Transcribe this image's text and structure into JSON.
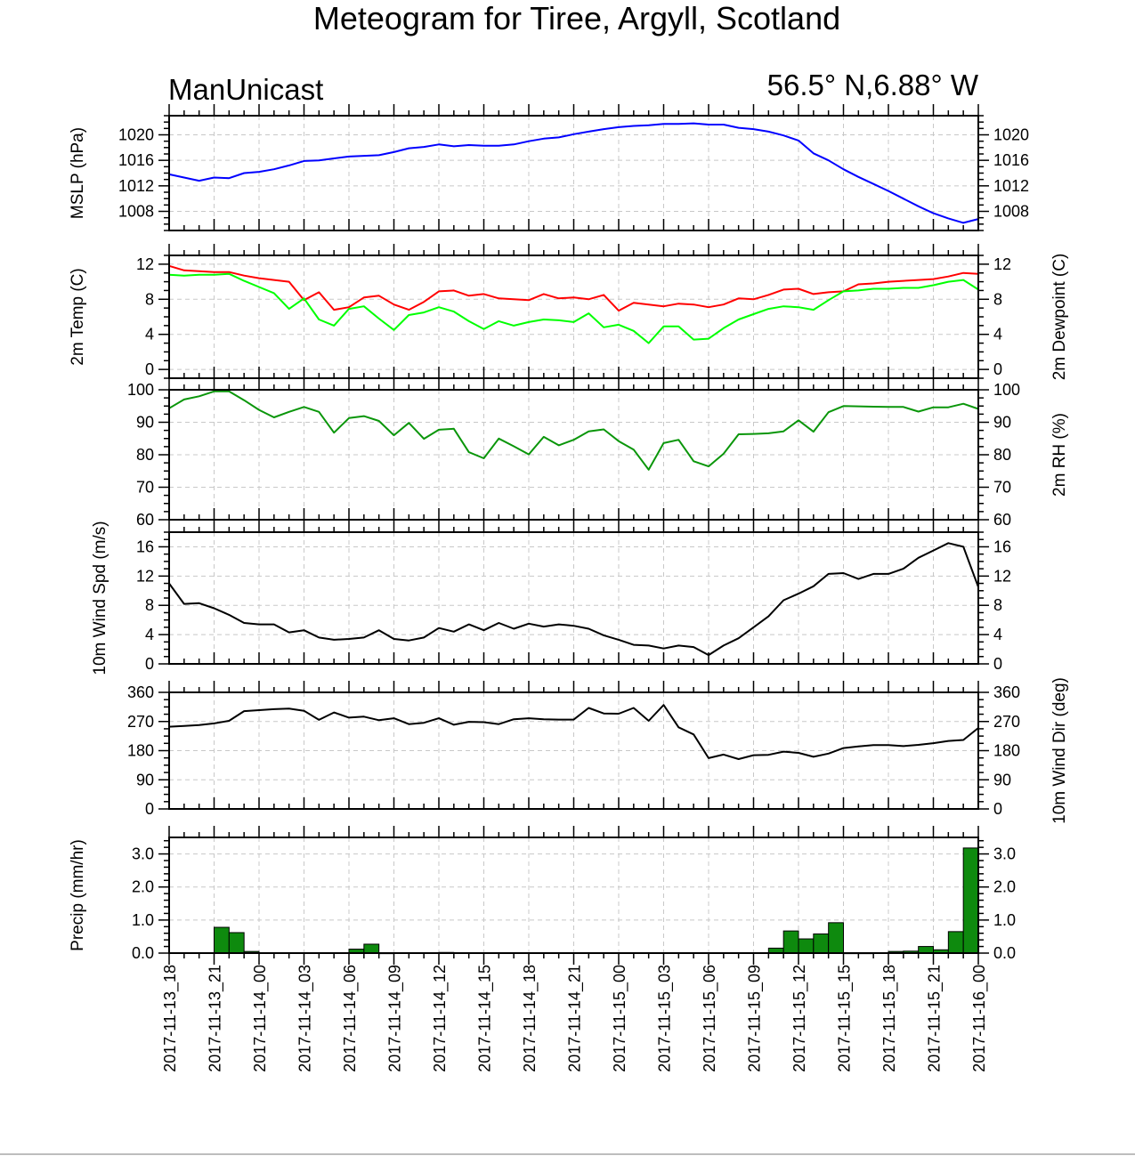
{
  "chart_data": {
    "type": "line",
    "title": "Meteogram for Tiree, Argyll, Scotland",
    "subtitle_left": "ManUnicast",
    "subtitle_right": "56.5° N,6.88° W",
    "x_labels": [
      "2017-11-13_18",
      "2017-11-13_21",
      "2017-11-14_00",
      "2017-11-14_03",
      "2017-11-14_06",
      "2017-11-14_09",
      "2017-11-14_12",
      "2017-11-14_15",
      "2017-11-14_18",
      "2017-11-14_21",
      "2017-11-15_00",
      "2017-11-15_03",
      "2017-11-15_06",
      "2017-11-15_09",
      "2017-11-15_12",
      "2017-11-15_15",
      "2017-11-15_18",
      "2017-11-15_21",
      "2017-11-16_00"
    ],
    "x_hours": [
      0,
      1,
      2,
      3,
      4,
      5,
      6,
      7,
      8,
      9,
      10,
      11,
      12,
      13,
      14,
      15,
      16,
      17,
      18,
      19,
      20,
      21,
      22,
      23,
      24,
      25,
      26,
      27,
      28,
      29,
      30,
      31,
      32,
      33,
      34,
      35,
      36,
      37,
      38,
      39,
      40,
      41,
      42,
      43,
      44,
      45,
      46,
      47,
      48,
      49,
      50,
      51,
      52,
      53,
      54
    ],
    "xlim": [
      0,
      54
    ],
    "panels": [
      {
        "ylabel": "MSLP (hPa)",
        "ylabel_right": "",
        "ylim": [
          1005,
          1023
        ],
        "ticks": [
          1008,
          1012,
          1016,
          1020
        ],
        "series": [
          {
            "color": "#0000ff",
            "values": [
              1013.8,
              1013.3,
              1012.8,
              1013.3,
              1013.2,
              1014.0,
              1014.2,
              1014.6,
              1015.2,
              1015.9,
              1016.0,
              1016.3,
              1016.6,
              1016.7,
              1016.8,
              1017.3,
              1017.9,
              1018.1,
              1018.5,
              1018.2,
              1018.4,
              1018.3,
              1018.3,
              1018.5,
              1019.0,
              1019.4,
              1019.6,
              1020.1,
              1020.5,
              1020.9,
              1021.2,
              1021.4,
              1021.5,
              1021.7,
              1021.7,
              1021.8,
              1021.6,
              1021.6,
              1021.1,
              1020.9,
              1020.5,
              1019.9,
              1019.1,
              1017.1,
              1016.0,
              1014.6,
              1013.4,
              1012.3,
              1011.2,
              1010.0,
              1008.8,
              1007.7,
              1006.9,
              1006.2,
              1006.8
            ]
          }
        ]
      },
      {
        "ylabel": "2m Temp (C)",
        "ylabel_right": "2m Dewpoint (C)",
        "ylim": [
          -1,
          13
        ],
        "ticks": [
          0,
          4,
          8,
          12
        ],
        "series": [
          {
            "color": "#ff0000",
            "values": [
              11.8,
              11.3,
              11.2,
              11.1,
              11.1,
              10.7,
              10.4,
              10.2,
              10.0,
              7.9,
              8.8,
              6.8,
              7.1,
              8.2,
              8.4,
              7.4,
              6.8,
              7.7,
              8.9,
              9.0,
              8.4,
              8.6,
              8.1,
              8.0,
              7.9,
              8.6,
              8.1,
              8.2,
              8.0,
              8.5,
              6.7,
              7.6,
              7.4,
              7.2,
              7.5,
              7.4,
              7.1,
              7.4,
              8.1,
              8.0,
              8.5,
              9.1,
              9.2,
              8.6,
              8.8,
              8.9,
              9.7,
              9.8,
              10.0,
              10.1,
              10.2,
              10.3,
              10.6,
              11.0,
              10.9
            ]
          },
          {
            "color": "#00ff00",
            "values": [
              10.8,
              10.7,
              10.8,
              10.8,
              10.9,
              10.1,
              9.4,
              8.7,
              6.9,
              8.1,
              5.7,
              5.0,
              6.9,
              7.2,
              5.8,
              4.5,
              6.2,
              6.5,
              7.1,
              6.6,
              5.5,
              4.6,
              5.5,
              5.0,
              5.4,
              5.7,
              5.6,
              5.4,
              6.4,
              4.8,
              5.1,
              4.4,
              3.0,
              4.9,
              4.9,
              3.4,
              3.5,
              4.7,
              5.7,
              6.3,
              6.9,
              7.2,
              7.1,
              6.8,
              7.9,
              8.9,
              9.0,
              9.2,
              9.2,
              9.3,
              9.3,
              9.6,
              10.0,
              10.2,
              9.1
            ]
          }
        ]
      },
      {
        "ylabel": "",
        "ylabel_right": "2m RH (%)",
        "ylim": [
          60,
          100
        ],
        "ticks": [
          60,
          70,
          80,
          90,
          100
        ],
        "series": [
          {
            "color": "#0a960a",
            "values": [
              94.3,
              97.0,
              98.0,
              99.5,
              99.5,
              96.8,
              93.8,
              91.5,
              93.2,
              94.7,
              93.2,
              86.8,
              91.3,
              91.9,
              90.4,
              86.0,
              89.8,
              84.9,
              87.7,
              88.0,
              80.8,
              78.9,
              85.0,
              82.6,
              80.1,
              85.5,
              82.9,
              84.6,
              87.2,
              87.8,
              84.2,
              81.6,
              75.4,
              83.6,
              84.6,
              78.0,
              76.4,
              80.3,
              86.3,
              86.4,
              86.6,
              87.2,
              90.6,
              87.1,
              93.1,
              95.0,
              94.9,
              94.8,
              94.7,
              94.7,
              93.3,
              94.6,
              94.6,
              95.7,
              94.1
            ]
          }
        ]
      },
      {
        "ylabel": "10m Wind Spd (m/s)",
        "ylabel_right": "",
        "ylim": [
          0,
          18
        ],
        "ticks": [
          0,
          4,
          8,
          12,
          16
        ],
        "series": [
          {
            "color": "#000000",
            "values": [
              11.0,
              8.2,
              8.3,
              7.6,
              6.7,
              5.6,
              5.4,
              5.4,
              4.3,
              4.6,
              3.6,
              3.3,
              3.4,
              3.6,
              4.6,
              3.4,
              3.2,
              3.6,
              4.9,
              4.4,
              5.4,
              4.6,
              5.6,
              4.8,
              5.5,
              5.1,
              5.4,
              5.2,
              4.8,
              3.9,
              3.3,
              2.6,
              2.5,
              2.1,
              2.5,
              2.3,
              1.2,
              2.5,
              3.5,
              5.0,
              6.5,
              8.7,
              9.6,
              10.6,
              12.3,
              12.4,
              11.6,
              12.3,
              12.3,
              13.0,
              14.5,
              15.5,
              16.5,
              16.0,
              10.5
            ]
          }
        ]
      },
      {
        "ylabel": "",
        "ylabel_right": "10m Wind Dir (deg)",
        "ylim": [
          0,
          360
        ],
        "ticks": [
          0,
          90,
          180,
          270,
          360
        ],
        "series": [
          {
            "color": "#000000",
            "values": [
              254,
              256,
              259,
              264,
              272,
              302,
              305,
              308,
              310,
              303,
              275,
              298,
              282,
              285,
              274,
              280,
              262,
              266,
              280,
              260,
              269,
              268,
              262,
              277,
              280,
              277,
              276,
              276,
              312,
              295,
              294,
              312,
              272,
              321,
              252,
              230,
              157,
              168,
              154,
              166,
              167,
              177,
              173,
              161,
              171,
              188,
              193,
              197,
              197,
              194,
              198,
              203,
              210,
              213,
              250
            ]
          }
        ]
      },
      {
        "ylabel": "Precip (mm/hr)",
        "ylabel_right": "",
        "ylim": [
          0,
          3.5
        ],
        "ticks": [
          0.0,
          1.0,
          2.0,
          3.0
        ],
        "tick_labels": [
          "0.0",
          "1.0",
          "2.0",
          "3.0"
        ],
        "bars": {
          "color": "#0e8a0e",
          "values": [
            0,
            0,
            0,
            0.78,
            0.62,
            0.05,
            0,
            0,
            0,
            0,
            0,
            0,
            0.12,
            0.27,
            0.01,
            0,
            0,
            0,
            0.02,
            0,
            0,
            0,
            0,
            0,
            0,
            0,
            0,
            0,
            0,
            0,
            0,
            0,
            0,
            0,
            0,
            0,
            0,
            0,
            0,
            0,
            0.15,
            0.67,
            0.43,
            0.58,
            0.92,
            0.01,
            0.01,
            0,
            0.05,
            0.06,
            0.2,
            0.1,
            0.65,
            3.18
          ]
        }
      }
    ]
  }
}
